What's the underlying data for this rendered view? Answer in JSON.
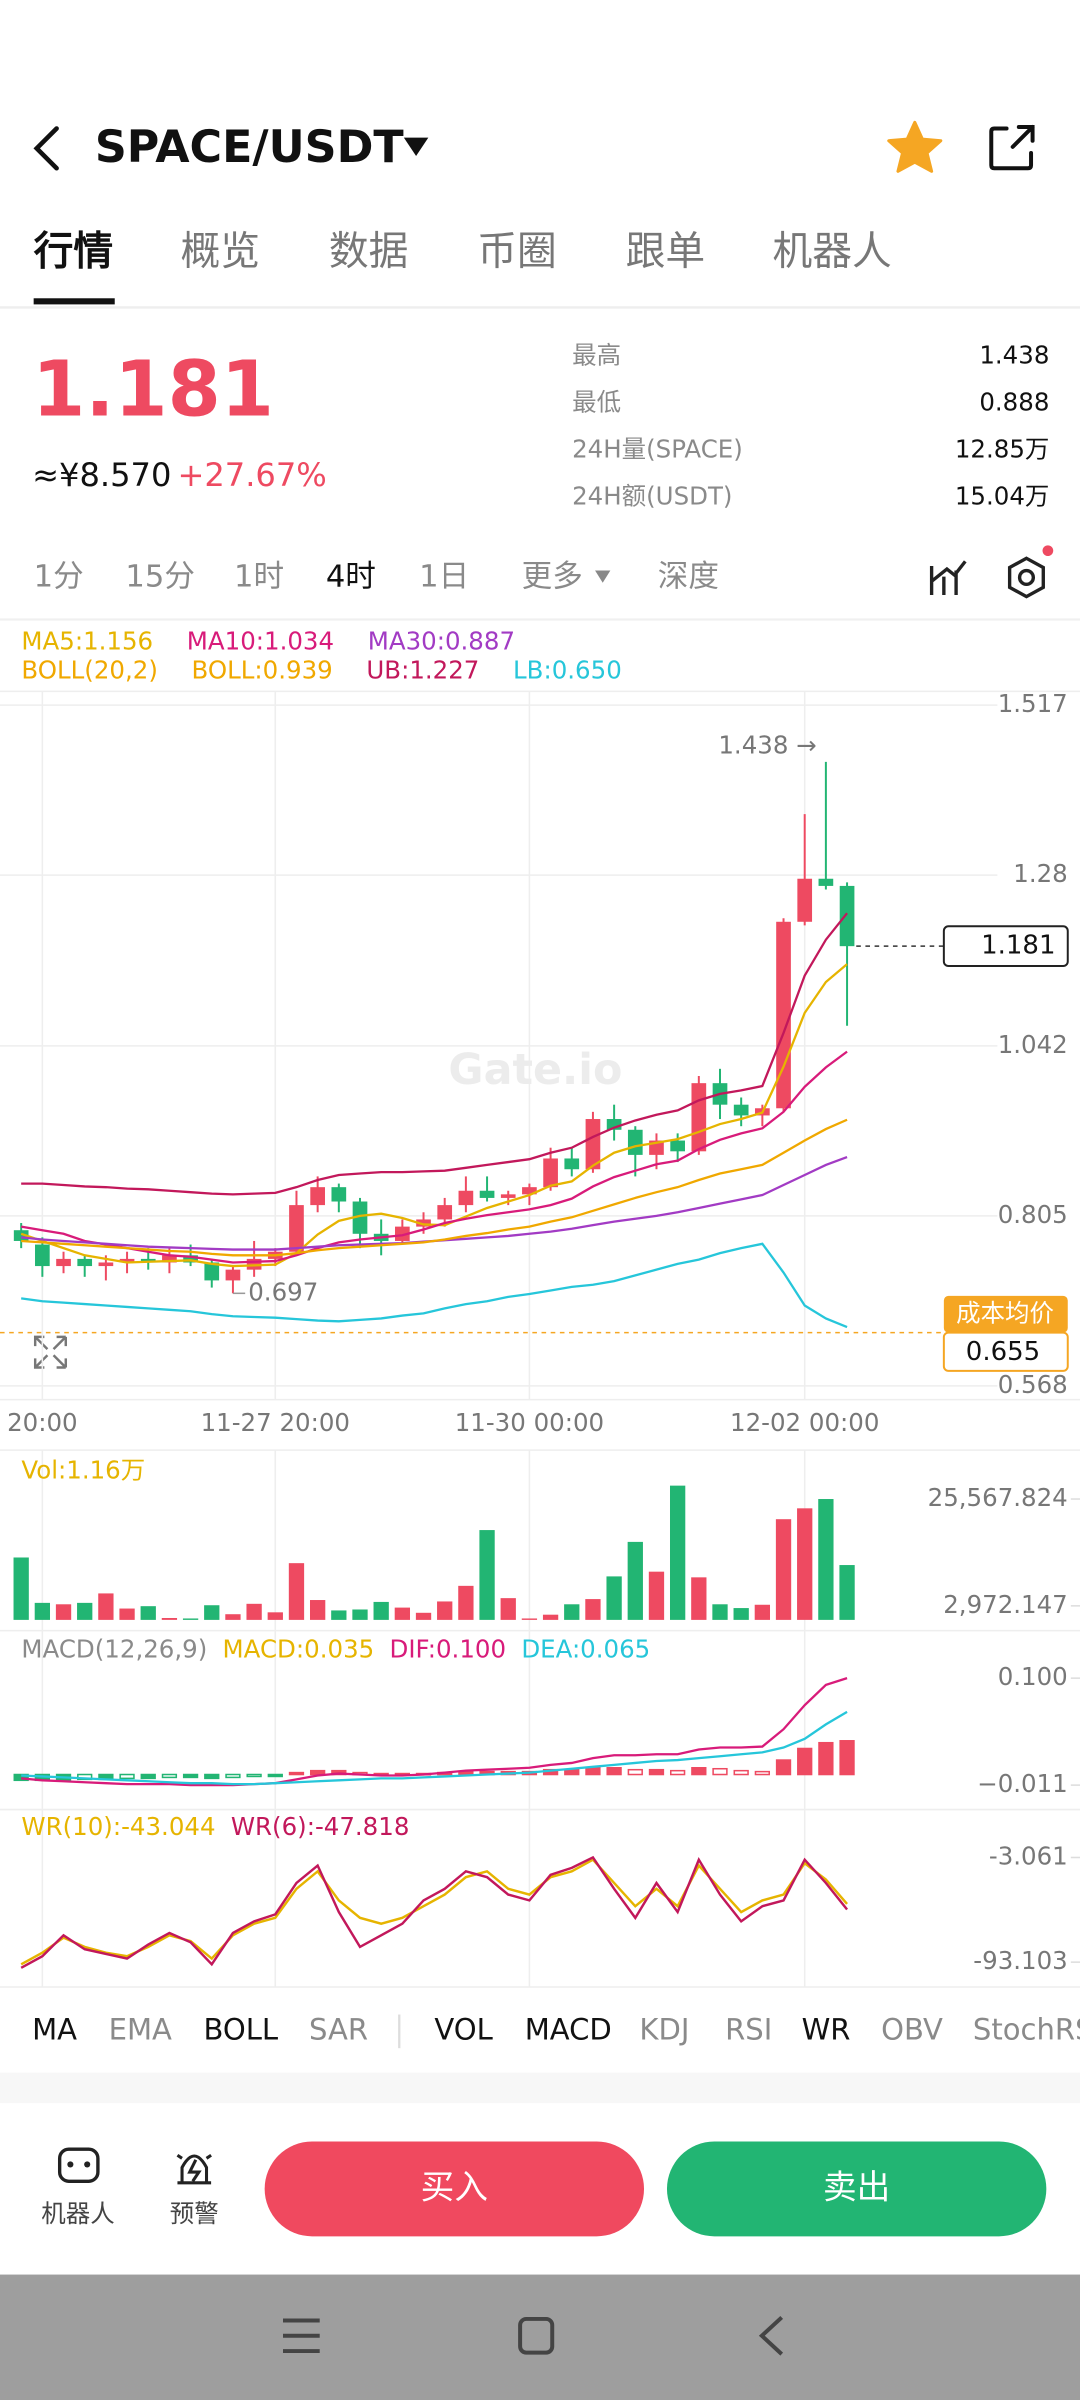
{
  "header": {
    "pair": "SPACE/USDT"
  },
  "tabs": [
    "行情",
    "概览",
    "数据",
    "币圈",
    "跟单",
    "机器人"
  ],
  "price": {
    "last": "1.181",
    "cny": "≈¥8.570",
    "change": "+27.67%"
  },
  "stats": [
    {
      "label": "最高",
      "value": "1.438"
    },
    {
      "label": "最低",
      "value": "0.888"
    },
    {
      "label": "24H量(SPACE)",
      "value": "12.85万"
    },
    {
      "label": "24H额(USDT)",
      "value": "15.04万"
    }
  ],
  "intervals": [
    {
      "label": "1分",
      "active": false
    },
    {
      "label": "15分",
      "active": false
    },
    {
      "label": "1时",
      "active": false
    },
    {
      "label": "4时",
      "active": true
    },
    {
      "label": "1日",
      "active": false
    },
    {
      "label": "更多",
      "active": false
    },
    {
      "label": "深度",
      "active": false
    }
  ],
  "indicator_tabs": [
    {
      "label": "MA",
      "active": true
    },
    {
      "label": "EMA",
      "active": false
    },
    {
      "label": "BOLL",
      "active": true
    },
    {
      "label": "SAR",
      "active": false
    },
    {
      "label": "VOL",
      "active": true
    },
    {
      "label": "MACD",
      "active": true
    },
    {
      "label": "KDJ",
      "active": false
    },
    {
      "label": "RSI",
      "active": false
    },
    {
      "label": "WR",
      "active": true
    },
    {
      "label": "OBV",
      "active": false
    },
    {
      "label": "StochRSI",
      "active": false
    }
  ],
  "bottom": {
    "robot": "机器人",
    "alert": "预警",
    "buy": "买入",
    "sell": "卖出"
  },
  "chart_data": [
    {
      "type": "candlestick",
      "watermark": "Gate.io",
      "indicator_label": "BOLL(20,2)",
      "up_color": "#ee4a61",
      "down_color": "#22b573",
      "xlim": [
        -1,
        50
      ],
      "xticks": [
        {
          "value": 1,
          "label": "20:00"
        },
        {
          "value": 12,
          "label": "11-27 20:00"
        },
        {
          "value": 24,
          "label": "11-30 00:00"
        },
        {
          "value": 37,
          "label": "12-02 00:00"
        }
      ],
      "ylim": [
        0.568,
        1.517
      ],
      "yticks": [
        1.517,
        1.28,
        1.042,
        0.805,
        0.568
      ],
      "grid": true,
      "open": [
        0.785,
        0.765,
        0.735,
        0.745,
        0.735,
        0.74,
        0.745,
        0.74,
        0.75,
        0.74,
        0.715,
        0.73,
        0.745,
        0.755,
        0.82,
        0.845,
        0.825,
        0.78,
        0.77,
        0.79,
        0.8,
        0.82,
        0.84,
        0.83,
        0.835,
        0.845,
        0.885,
        0.87,
        0.94,
        0.925,
        0.89,
        0.91,
        0.895,
        0.99,
        0.96,
        0.945,
        0.955,
        1.215,
        1.275,
        1.265
      ],
      "high": [
        0.795,
        0.775,
        0.755,
        0.75,
        0.75,
        0.755,
        0.76,
        0.76,
        0.765,
        0.745,
        0.735,
        0.77,
        0.76,
        0.84,
        0.86,
        0.85,
        0.83,
        0.8,
        0.8,
        0.81,
        0.83,
        0.86,
        0.86,
        0.84,
        0.85,
        0.9,
        0.9,
        0.95,
        0.96,
        0.93,
        0.92,
        0.92,
        1.0,
        1.01,
        0.97,
        0.96,
        1.22,
        1.365,
        1.438,
        1.27
      ],
      "low": [
        0.76,
        0.72,
        0.725,
        0.72,
        0.715,
        0.725,
        0.73,
        0.725,
        0.735,
        0.705,
        0.697,
        0.72,
        0.735,
        0.75,
        0.81,
        0.81,
        0.76,
        0.75,
        0.765,
        0.78,
        0.79,
        0.81,
        0.825,
        0.82,
        0.82,
        0.84,
        0.86,
        0.865,
        0.91,
        0.86,
        0.87,
        0.88,
        0.89,
        0.94,
        0.93,
        0.93,
        0.95,
        1.21,
        1.26,
        1.07
      ],
      "close": [
        0.77,
        0.735,
        0.745,
        0.735,
        0.74,
        0.745,
        0.74,
        0.75,
        0.74,
        0.715,
        0.73,
        0.745,
        0.755,
        0.82,
        0.845,
        0.825,
        0.78,
        0.77,
        0.79,
        0.8,
        0.82,
        0.84,
        0.83,
        0.835,
        0.845,
        0.885,
        0.87,
        0.94,
        0.925,
        0.89,
        0.91,
        0.895,
        0.99,
        0.96,
        0.945,
        0.955,
        1.215,
        1.275,
        1.265,
        1.181
      ],
      "series": [
        {
          "name": "MA5:1.156",
          "color": "#e6b400",
          "row": 0,
          "values": [
            0.78,
            0.77,
            0.76,
            0.75,
            0.745,
            0.74,
            0.741,
            0.742,
            0.743,
            0.738,
            0.735,
            0.736,
            0.737,
            0.753,
            0.779,
            0.798,
            0.805,
            0.808,
            0.802,
            0.793,
            0.792,
            0.804,
            0.816,
            0.825,
            0.834,
            0.847,
            0.853,
            0.875,
            0.893,
            0.902,
            0.907,
            0.912,
            0.922,
            0.933,
            0.94,
            0.949,
            1.013,
            1.088,
            1.131,
            1.156
          ]
        },
        {
          "name": "MA10:1.034",
          "color": "#d81b7a",
          "row": 0,
          "values": [
            0.79,
            0.785,
            0.78,
            0.77,
            0.765,
            0.76,
            0.755,
            0.75,
            0.748,
            0.744,
            0.74,
            0.741,
            0.742,
            0.75,
            0.76,
            0.768,
            0.772,
            0.775,
            0.778,
            0.786,
            0.795,
            0.801,
            0.806,
            0.81,
            0.814,
            0.82,
            0.829,
            0.846,
            0.859,
            0.868,
            0.877,
            0.882,
            0.898,
            0.911,
            0.92,
            0.927,
            0.95,
            0.985,
            1.012,
            1.034
          ]
        },
        {
          "name": "MA30:0.887",
          "color": "#a23bc4",
          "row": 0,
          "values": [
            0.775,
            0.772,
            0.77,
            0.768,
            0.766,
            0.764,
            0.762,
            0.761,
            0.76,
            0.759,
            0.758,
            0.758,
            0.758,
            0.76,
            0.762,
            0.764,
            0.765,
            0.766,
            0.767,
            0.769,
            0.771,
            0.773,
            0.775,
            0.777,
            0.78,
            0.783,
            0.787,
            0.792,
            0.797,
            0.801,
            0.805,
            0.81,
            0.816,
            0.822,
            0.828,
            0.834,
            0.848,
            0.862,
            0.876,
            0.887
          ]
        },
        {
          "name": "BOLL:0.939",
          "color": "#f0a800",
          "row": 1,
          "values": [
            0.77,
            0.768,
            0.766,
            0.764,
            0.762,
            0.76,
            0.758,
            0.756,
            0.755,
            0.752,
            0.75,
            0.75,
            0.75,
            0.753,
            0.757,
            0.76,
            0.762,
            0.764,
            0.766,
            0.768,
            0.772,
            0.777,
            0.781,
            0.786,
            0.79,
            0.797,
            0.803,
            0.812,
            0.821,
            0.83,
            0.838,
            0.845,
            0.855,
            0.864,
            0.87,
            0.876,
            0.893,
            0.91,
            0.926,
            0.939
          ]
        },
        {
          "name": "UB:1.227",
          "color": "#c2185b",
          "row": 1,
          "values": [
            0.85,
            0.85,
            0.848,
            0.846,
            0.845,
            0.843,
            0.842,
            0.84,
            0.838,
            0.836,
            0.835,
            0.836,
            0.837,
            0.845,
            0.855,
            0.862,
            0.864,
            0.866,
            0.866,
            0.867,
            0.868,
            0.872,
            0.876,
            0.88,
            0.884,
            0.893,
            0.9,
            0.915,
            0.928,
            0.938,
            0.946,
            0.952,
            0.966,
            0.975,
            0.98,
            0.986,
            1.06,
            1.14,
            1.19,
            1.227
          ]
        },
        {
          "name": "LB:0.650",
          "color": "#26c6da",
          "row": 1,
          "values": [
            0.69,
            0.686,
            0.684,
            0.682,
            0.68,
            0.678,
            0.676,
            0.674,
            0.672,
            0.668,
            0.665,
            0.664,
            0.663,
            0.661,
            0.659,
            0.658,
            0.66,
            0.662,
            0.666,
            0.669,
            0.676,
            0.682,
            0.686,
            0.692,
            0.696,
            0.701,
            0.706,
            0.709,
            0.714,
            0.722,
            0.73,
            0.738,
            0.744,
            0.753,
            0.76,
            0.766,
            0.726,
            0.68,
            0.662,
            0.65
          ]
        }
      ],
      "high_label": {
        "text": "1.438 →",
        "index": 38,
        "value": 1.438
      },
      "low_label": {
        "text": "0.697",
        "index": 10,
        "value": 0.697
      },
      "last_price": 1.181,
      "cost_title": "成本均价",
      "cost": 0.655
    },
    {
      "type": "bar",
      "legend": "Vol:1.16万",
      "color": "#e6b400",
      "ylim": [
        0,
        28800
      ],
      "yticks": [
        {
          "value": 25567.824,
          "label": "25,567.824"
        },
        {
          "value": 2972.147,
          "label": "2,972.147"
        }
      ],
      "values": [
        13200,
        3600,
        3300,
        3600,
        5600,
        2400,
        2900,
        400,
        300,
        3100,
        1200,
        3400,
        1600,
        12000,
        4200,
        2000,
        2200,
        3800,
        2600,
        1500,
        3900,
        7200,
        19000,
        4600,
        300,
        1100,
        3300,
        4400,
        9200,
        16500,
        10200,
        28400,
        9000,
        3300,
        2500,
        3200,
        21300,
        23600,
        25567.824,
        11600
      ]
    },
    {
      "type": "macd",
      "label": "MACD(12,26,9)",
      "ylim": [
        -0.0316,
        0.143
      ],
      "yticks": [
        {
          "value": 0.1,
          "label": "0.100"
        },
        {
          "value": -0.011,
          "label": "−0.011"
        }
      ],
      "series": [
        {
          "name": "MACD:0.035",
          "color": "#e6b400",
          "values": [
            -0.006,
            -0.006,
            -0.006,
            -0.005,
            -0.005,
            -0.004,
            -0.004,
            -0.003,
            -0.003,
            -0.004,
            -0.003,
            -0.002,
            -0.002,
            0.002,
            0.004,
            0.004,
            0.002,
            0.001,
            0.001,
            0.001,
            0.002,
            0.003,
            0.003,
            0.003,
            0.003,
            0.005,
            0.005,
            0.007,
            0.007,
            0.005,
            0.005,
            0.004,
            0.007,
            0.006,
            0.004,
            0.003,
            0.015,
            0.027,
            0.033,
            0.035
          ]
        },
        {
          "name": "DIF:0.100",
          "color": "#d81b7a",
          "values": [
            -0.004,
            -0.006,
            -0.007,
            -0.008,
            -0.009,
            -0.01,
            -0.01,
            -0.01,
            -0.011,
            -0.011,
            -0.011,
            -0.01,
            -0.009,
            -0.005,
            -0.001,
            0.001,
            0.0,
            -0.001,
            -0.001,
            0.0,
            0.002,
            0.004,
            0.005,
            0.006,
            0.007,
            0.01,
            0.012,
            0.017,
            0.02,
            0.02,
            0.021,
            0.021,
            0.026,
            0.028,
            0.028,
            0.029,
            0.047,
            0.072,
            0.093,
            0.1
          ]
        },
        {
          "name": "DEA:0.065",
          "color": "#26c6da",
          "values": [
            -0.001,
            -0.002,
            -0.003,
            -0.004,
            -0.005,
            -0.006,
            -0.007,
            -0.008,
            -0.009,
            -0.009,
            -0.01,
            -0.01,
            -0.009,
            -0.008,
            -0.007,
            -0.006,
            -0.005,
            -0.004,
            -0.004,
            -0.003,
            -0.002,
            -0.001,
            0.0,
            0.001,
            0.002,
            0.004,
            0.006,
            0.008,
            0.01,
            0.012,
            0.014,
            0.015,
            0.017,
            0.019,
            0.021,
            0.023,
            0.028,
            0.037,
            0.052,
            0.065
          ]
        }
      ]
    },
    {
      "type": "line",
      "ylim": [
        -100,
        0
      ],
      "yticks": [
        -3.061,
        -93.103
      ],
      "series": [
        {
          "name": "WR(10):-43.044",
          "color": "#e6b400",
          "values": [
            -95,
            -85,
            -72,
            -80,
            -85,
            -88,
            -80,
            -70,
            -75,
            -90,
            -70,
            -60,
            -55,
            -30,
            -15,
            -40,
            -55,
            -60,
            -55,
            -45,
            -35,
            -20,
            -15,
            -30,
            -35,
            -20,
            -15,
            -5,
            -25,
            -45,
            -30,
            -45,
            -10,
            -30,
            -50,
            -40,
            -35,
            -8,
            -22,
            -43.044
          ]
        },
        {
          "name": "WR(6):-47.818",
          "color": "#c2185b",
          "values": [
            -98,
            -88,
            -70,
            -82,
            -86,
            -90,
            -78,
            -68,
            -76,
            -95,
            -68,
            -58,
            -52,
            -25,
            -10,
            -50,
            -80,
            -70,
            -60,
            -40,
            -30,
            -15,
            -20,
            -35,
            -40,
            -18,
            -12,
            -3,
            -30,
            -55,
            -25,
            -50,
            -5,
            -35,
            -58,
            -45,
            -40,
            -5,
            -25,
            -47.818
          ]
        }
      ]
    }
  ]
}
